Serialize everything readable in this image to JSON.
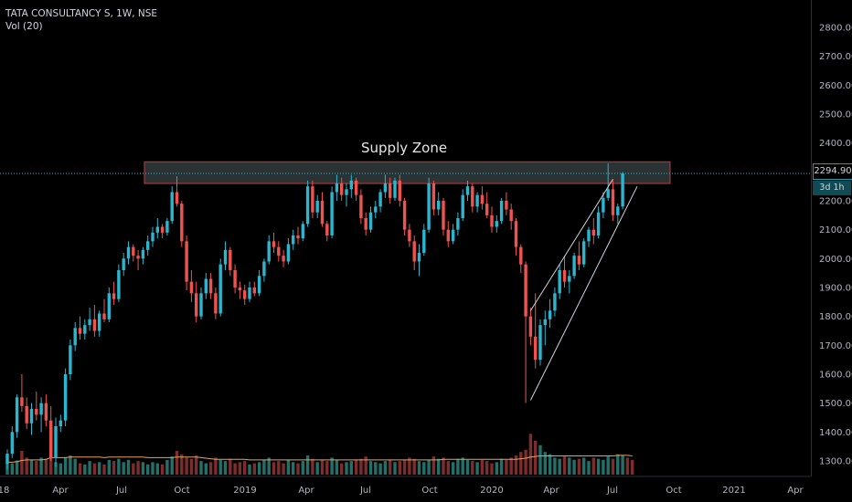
{
  "legend": {
    "symbol": "TATA CONSULTANCY S, 1W, NSE",
    "volume": "Vol (20)"
  },
  "annotation": {
    "zone_label": "Supply Zone"
  },
  "current_price": {
    "label": "2294.90",
    "countdown": "3d 1h",
    "value": 2294.9
  },
  "colors": {
    "up": "#26a69a",
    "up_bright": "#2bb6cf",
    "down": "#ef5350",
    "vol_up": "#22706a",
    "vol_down": "#7d2d2b",
    "zone_fill": "#3a4346",
    "zone_border": "#c23b3b",
    "trend_line": "#d1d4dc",
    "vol_ma": "#e8a060",
    "price_line": "#2bb6cf"
  },
  "chart_data": {
    "type": "candlestick",
    "price_axis": {
      "min": 1250,
      "max": 2900,
      "ticks": [
        "2800.00",
        "2700.00",
        "2600.00",
        "2500.00",
        "2400.00",
        "2300.00",
        "2200.00",
        "2100.00",
        "2000.00",
        "1900.00",
        "1800.00",
        "1700.00",
        "1600.00",
        "1500.00",
        "1400.00",
        "1300.00"
      ]
    },
    "time_axis": {
      "labels": [
        "18",
        "Apr",
        "Jul",
        "Oct",
        "2019",
        "Apr",
        "Jul",
        "Oct",
        "2020",
        "Apr",
        "Jul",
        "Oct",
        "2021",
        "Apr"
      ]
    },
    "supply_zone": {
      "low": 2260,
      "high": 2335,
      "from_index": 28,
      "to_index": 133
    },
    "channel": {
      "lower": [
        [
          108,
          1510
        ],
        [
          130,
          2250
        ]
      ],
      "upper": [
        [
          108,
          1820
        ],
        [
          125,
          2275
        ]
      ]
    },
    "candles": [
      [
        1290,
        1340,
        1270,
        1325
      ],
      [
        1325,
        1420,
        1310,
        1400
      ],
      [
        1400,
        1530,
        1380,
        1520
      ],
      [
        1520,
        1600,
        1470,
        1490
      ],
      [
        1490,
        1520,
        1410,
        1430
      ],
      [
        1430,
        1500,
        1390,
        1480
      ],
      [
        1480,
        1540,
        1440,
        1460
      ],
      [
        1460,
        1520,
        1400,
        1500
      ],
      [
        1500,
        1530,
        1420,
        1440
      ],
      [
        1440,
        1490,
        1300,
        1310
      ],
      [
        1310,
        1450,
        1280,
        1420
      ],
      [
        1420,
        1460,
        1400,
        1440
      ],
      [
        1440,
        1620,
        1420,
        1600
      ],
      [
        1600,
        1720,
        1580,
        1700
      ],
      [
        1700,
        1780,
        1680,
        1760
      ],
      [
        1760,
        1800,
        1720,
        1740
      ],
      [
        1740,
        1790,
        1720,
        1770
      ],
      [
        1770,
        1830,
        1750,
        1790
      ],
      [
        1790,
        1840,
        1730,
        1750
      ],
      [
        1750,
        1820,
        1730,
        1810
      ],
      [
        1810,
        1860,
        1780,
        1790
      ],
      [
        1790,
        1900,
        1780,
        1880
      ],
      [
        1880,
        1920,
        1840,
        1860
      ],
      [
        1860,
        1980,
        1850,
        1960
      ],
      [
        1960,
        2020,
        1940,
        2000
      ],
      [
        2000,
        2060,
        1980,
        2040
      ],
      [
        2040,
        2050,
        1990,
        2010
      ],
      [
        2010,
        2030,
        1960,
        2000
      ],
      [
        2000,
        2040,
        1980,
        2030
      ],
      [
        2030,
        2080,
        2010,
        2060
      ],
      [
        2060,
        2110,
        2040,
        2090
      ],
      [
        2090,
        2140,
        2070,
        2110
      ],
      [
        2110,
        2120,
        2070,
        2090
      ],
      [
        2090,
        2140,
        2080,
        2130
      ],
      [
        2130,
        2250,
        2120,
        2230
      ],
      [
        2230,
        2285,
        2180,
        2190
      ],
      [
        2190,
        2200,
        2040,
        2060
      ],
      [
        2060,
        2080,
        1890,
        1920
      ],
      [
        1920,
        1960,
        1850,
        1880
      ],
      [
        1880,
        1920,
        1780,
        1800
      ],
      [
        1800,
        1900,
        1790,
        1880
      ],
      [
        1880,
        1950,
        1860,
        1930
      ],
      [
        1930,
        1950,
        1860,
        1880
      ],
      [
        1880,
        1900,
        1790,
        1810
      ],
      [
        1810,
        2000,
        1800,
        1980
      ],
      [
        1980,
        2060,
        1960,
        2030
      ],
      [
        2030,
        2040,
        1940,
        1960
      ],
      [
        1960,
        1980,
        1880,
        1900
      ],
      [
        1900,
        1920,
        1860,
        1890
      ],
      [
        1890,
        1910,
        1840,
        1860
      ],
      [
        1860,
        1920,
        1850,
        1900
      ],
      [
        1900,
        1920,
        1870,
        1880
      ],
      [
        1880,
        1960,
        1870,
        1940
      ],
      [
        1940,
        2000,
        1920,
        1990
      ],
      [
        1990,
        2080,
        1980,
        2060
      ],
      [
        2060,
        2090,
        2020,
        2040
      ],
      [
        2040,
        2060,
        1990,
        2010
      ],
      [
        2010,
        2030,
        1970,
        1990
      ],
      [
        1990,
        2070,
        1980,
        2050
      ],
      [
        2050,
        2100,
        2030,
        2080
      ],
      [
        2080,
        2110,
        2050,
        2070
      ],
      [
        2070,
        2130,
        2060,
        2120
      ],
      [
        2120,
        2270,
        2110,
        2250
      ],
      [
        2250,
        2270,
        2140,
        2160
      ],
      [
        2160,
        2220,
        2140,
        2200
      ],
      [
        2200,
        2230,
        2110,
        2120
      ],
      [
        2120,
        2130,
        2060,
        2080
      ],
      [
        2080,
        2250,
        2070,
        2230
      ],
      [
        2230,
        2290,
        2200,
        2260
      ],
      [
        2260,
        2280,
        2200,
        2220
      ],
      [
        2220,
        2260,
        2180,
        2240
      ],
      [
        2240,
        2290,
        2210,
        2270
      ],
      [
        2270,
        2280,
        2200,
        2220
      ],
      [
        2220,
        2240,
        2120,
        2140
      ],
      [
        2140,
        2160,
        2080,
        2100
      ],
      [
        2100,
        2180,
        2090,
        2160
      ],
      [
        2160,
        2200,
        2140,
        2180
      ],
      [
        2180,
        2240,
        2160,
        2230
      ],
      [
        2230,
        2290,
        2210,
        2260
      ],
      [
        2260,
        2280,
        2190,
        2210
      ],
      [
        2210,
        2280,
        2200,
        2270
      ],
      [
        2270,
        2290,
        2180,
        2200
      ],
      [
        2200,
        2210,
        2080,
        2100
      ],
      [
        2100,
        2120,
        2040,
        2060
      ],
      [
        2060,
        2080,
        1960,
        1990
      ],
      [
        1990,
        2050,
        1940,
        2020
      ],
      [
        2020,
        2120,
        2010,
        2100
      ],
      [
        2100,
        2280,
        2090,
        2260
      ],
      [
        2260,
        2270,
        2150,
        2170
      ],
      [
        2170,
        2230,
        2150,
        2200
      ],
      [
        2200,
        2210,
        2080,
        2100
      ],
      [
        2100,
        2130,
        2040,
        2060
      ],
      [
        2060,
        2120,
        2050,
        2100
      ],
      [
        2100,
        2160,
        2080,
        2140
      ],
      [
        2140,
        2240,
        2130,
        2220
      ],
      [
        2220,
        2270,
        2200,
        2250
      ],
      [
        2250,
        2260,
        2160,
        2180
      ],
      [
        2180,
        2230,
        2160,
        2220
      ],
      [
        2220,
        2250,
        2170,
        2190
      ],
      [
        2190,
        2230,
        2140,
        2150
      ],
      [
        2150,
        2180,
        2090,
        2110
      ],
      [
        2110,
        2150,
        2090,
        2130
      ],
      [
        2130,
        2210,
        2120,
        2200
      ],
      [
        2200,
        2230,
        2150,
        2170
      ],
      [
        2170,
        2190,
        2100,
        2130
      ],
      [
        2130,
        2140,
        2010,
        2040
      ],
      [
        2040,
        2050,
        1950,
        1980
      ],
      [
        1980,
        1990,
        1500,
        1800
      ],
      [
        1800,
        1830,
        1700,
        1730
      ],
      [
        1730,
        1880,
        1620,
        1650
      ],
      [
        1650,
        1790,
        1630,
        1770
      ],
      [
        1770,
        1820,
        1700,
        1790
      ],
      [
        1790,
        1860,
        1760,
        1820
      ],
      [
        1820,
        1900,
        1800,
        1880
      ],
      [
        1880,
        1980,
        1860,
        1960
      ],
      [
        1960,
        2010,
        1900,
        1920
      ],
      [
        1920,
        1960,
        1880,
        1940
      ],
      [
        1940,
        2020,
        1930,
        2010
      ],
      [
        2010,
        2060,
        1960,
        1980
      ],
      [
        1980,
        2070,
        1970,
        2060
      ],
      [
        2060,
        2110,
        2040,
        2100
      ],
      [
        2100,
        2140,
        2050,
        2080
      ],
      [
        2080,
        2180,
        2070,
        2160
      ],
      [
        2160,
        2230,
        2140,
        2210
      ],
      [
        2210,
        2330,
        2200,
        2240
      ],
      [
        2240,
        2270,
        2130,
        2150
      ],
      [
        2150,
        2190,
        2120,
        2180
      ],
      [
        2180,
        2300,
        2170,
        2295
      ]
    ],
    "volumes": [
      22,
      20,
      25,
      42,
      30,
      26,
      24,
      30,
      28,
      88,
      22,
      20,
      30,
      34,
      28,
      20,
      18,
      24,
      20,
      22,
      18,
      26,
      24,
      28,
      22,
      26,
      20,
      24,
      22,
      18,
      22,
      20,
      18,
      26,
      32,
      42,
      36,
      30,
      28,
      34,
      24,
      20,
      22,
      30,
      26,
      24,
      28,
      20,
      22,
      24,
      18,
      20,
      22,
      26,
      30,
      22,
      24,
      20,
      26,
      22,
      20,
      24,
      34,
      28,
      22,
      26,
      24,
      30,
      26,
      20,
      22,
      24,
      26,
      28,
      32,
      24,
      22,
      20,
      24,
      26,
      22,
      24,
      26,
      30,
      28,
      24,
      22,
      26,
      32,
      28,
      30,
      24,
      22,
      28,
      30,
      26,
      24,
      22,
      26,
      24,
      20,
      22,
      28,
      26,
      30,
      34,
      40,
      44,
      72,
      60,
      52,
      40,
      36,
      30,
      28,
      32,
      30,
      26,
      28,
      30,
      24,
      30,
      28,
      26,
      32,
      28,
      36,
      34,
      30,
      26
    ],
    "volume_ma": [
      22,
      22,
      23,
      25,
      26,
      26,
      26,
      26,
      27,
      30,
      30,
      30,
      30,
      31,
      31,
      31,
      31,
      31,
      31,
      31,
      30,
      31,
      31,
      31,
      31,
      31,
      31,
      31,
      31,
      30,
      30,
      30,
      30,
      30,
      30,
      31,
      31,
      31,
      31,
      31,
      30,
      29,
      28,
      27,
      27,
      27,
      27,
      27,
      27,
      27,
      26,
      26,
      26,
      26,
      26,
      26,
      26,
      26,
      26,
      26,
      26,
      26,
      26,
      26,
      26,
      26,
      26,
      26,
      26,
      26,
      26,
      26,
      26,
      26,
      26,
      26,
      26,
      26,
      26,
      26,
      26,
      26,
      26,
      26,
      26,
      26,
      26,
      26,
      26,
      26,
      27,
      27,
      27,
      27,
      27,
      27,
      27,
      27,
      27,
      27,
      27,
      27,
      27,
      27,
      27,
      27,
      28,
      29,
      31,
      32,
      33,
      33,
      33,
      33,
      33,
      33,
      33,
      33,
      33,
      33,
      33,
      33,
      33,
      33,
      33,
      33,
      34,
      34,
      34,
      33
    ]
  }
}
